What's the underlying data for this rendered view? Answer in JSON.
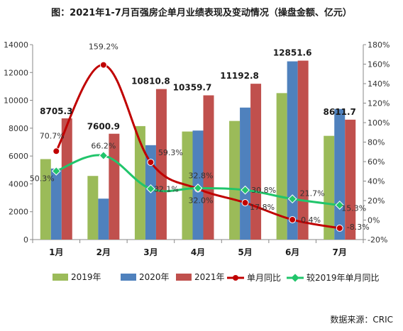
{
  "chart_data": {
    "type": "bar",
    "title": "图：2021年1-7月百强房企单月业绩表现及变动情况（操盘金额、亿元）",
    "categories": [
      "1月",
      "2月",
      "3月",
      "4月",
      "5月",
      "6月",
      "7月"
    ],
    "series": [
      {
        "name": "2019年",
        "type": "bar",
        "axis": "left",
        "color": "#9bbb59",
        "values": [
          5780,
          4570,
          8150,
          7760,
          8520,
          10520,
          7450
        ]
      },
      {
        "name": "2020年",
        "type": "bar",
        "axis": "left",
        "color": "#4f81bd",
        "values": [
          5100,
          2940,
          6780,
          7830,
          9480,
          12800,
          9380
        ]
      },
      {
        "name": "2021年",
        "type": "bar",
        "axis": "left",
        "color": "#c0504d",
        "values": [
          8705.3,
          7600.9,
          10810.8,
          10359.7,
          11192.8,
          12851.6,
          8611.7
        ]
      },
      {
        "name": "单月同比",
        "type": "line",
        "axis": "right",
        "color": "#c00000",
        "values": [
          70.7,
          159.2,
          59.3,
          32.0,
          17.8,
          0.4,
          -8.3
        ]
      },
      {
        "name": "较2019年单月同比",
        "type": "line",
        "axis": "right",
        "color": "#21c56b",
        "values": [
          50.3,
          66.2,
          32.1,
          32.8,
          30.8,
          21.7,
          15.3
        ]
      }
    ],
    "bar_labels": [
      "8705.3",
      "7600.9",
      "10810.8",
      "10359.7",
      "11192.8",
      "12851.6",
      "8611.7"
    ],
    "yoy_labels": [
      "70.7%",
      "159.2%",
      "59.3%",
      "32.0%",
      "17.8%",
      "0.4%",
      "-8.3%"
    ],
    "vs2019_labels": [
      "50.3%",
      "66.2%",
      "32.1%",
      "32.8%",
      "30.8%",
      "21.7%",
      "15.3%"
    ],
    "y_left": {
      "min": 0,
      "max": 14000,
      "step": 2000,
      "ticks": [
        "0",
        "2000",
        "4000",
        "6000",
        "8000",
        "10000",
        "12000",
        "14000"
      ]
    },
    "y_right": {
      "min": -20,
      "max": 180,
      "step": 20,
      "ticks": [
        "-20%",
        "0%",
        "20%",
        "40%",
        "60%",
        "80%",
        "100%",
        "120%",
        "140%",
        "160%",
        "180%"
      ]
    },
    "grid": false,
    "legend_position": "bottom",
    "source": "数据来源：CRIC"
  }
}
